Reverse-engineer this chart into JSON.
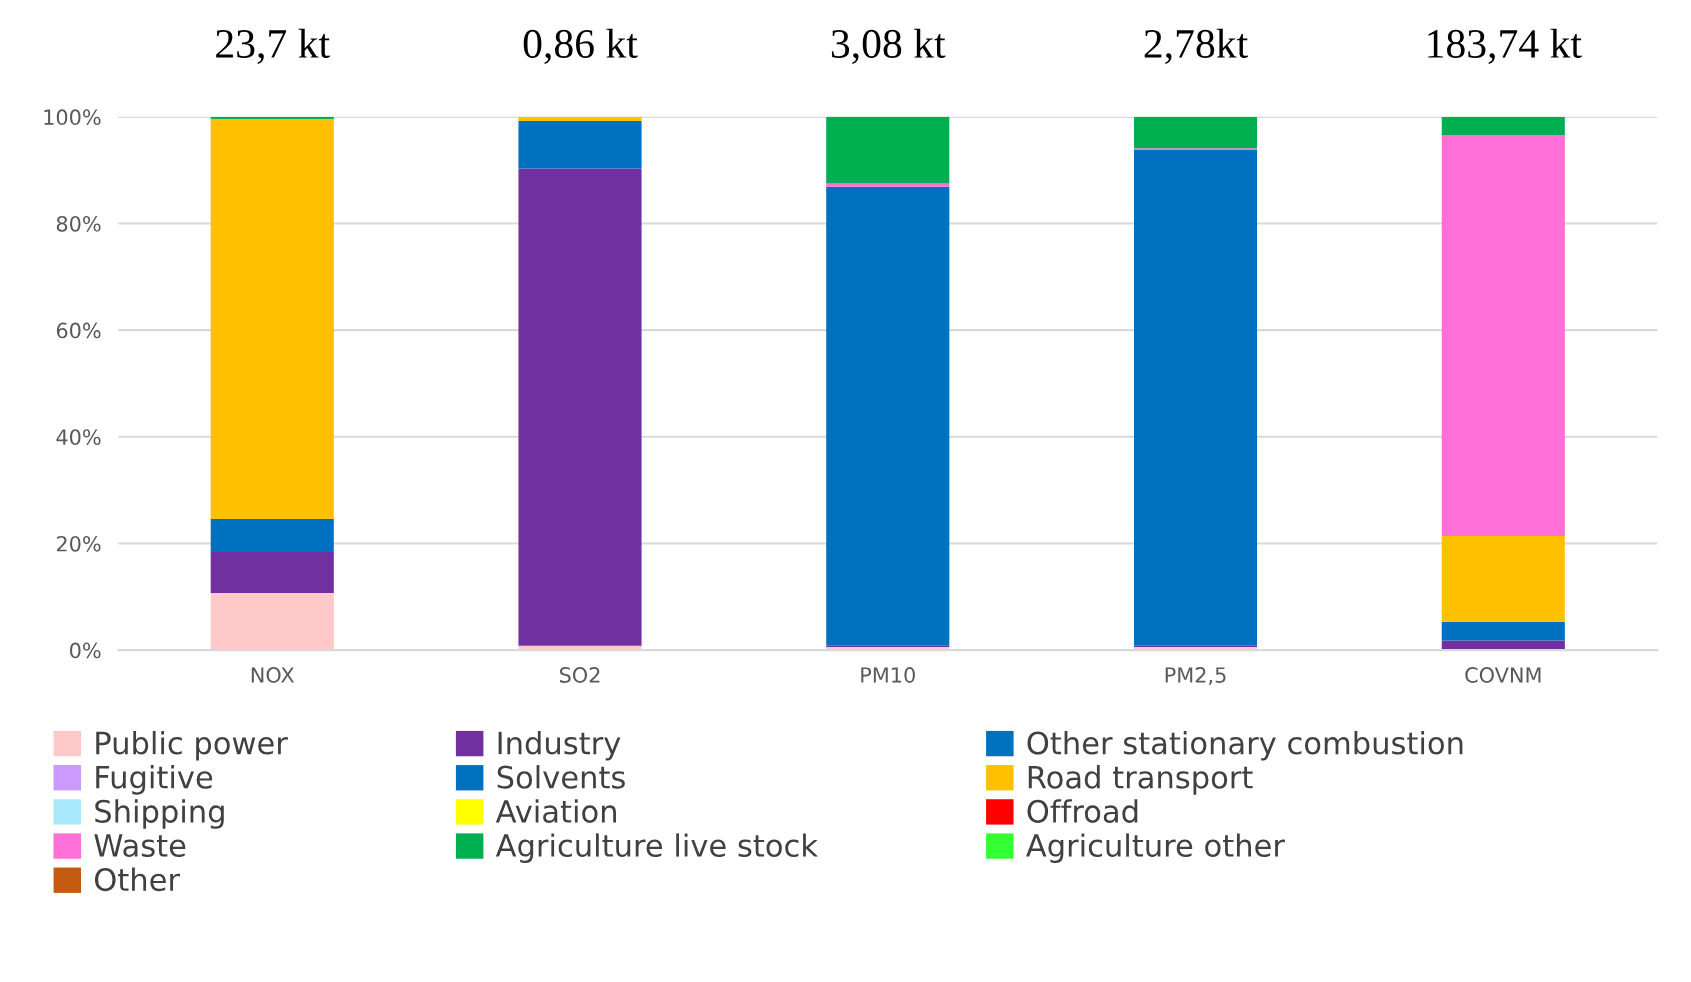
{
  "chart_data": {
    "type": "bar",
    "stacked": true,
    "categories": [
      "NOX",
      "SO2",
      "PM10",
      "PM2,5",
      "COVNM"
    ],
    "annotations": [
      "23,7 kt",
      "0,86 kt",
      "3,08 kt",
      "2,78kt",
      "183,74 kt"
    ],
    "ylim": [
      0,
      100
    ],
    "yticks": [
      {
        "value": 0,
        "label": "0%"
      },
      {
        "value": 20,
        "label": "20%"
      },
      {
        "value": 40,
        "label": "40%"
      },
      {
        "value": 60,
        "label": "60%"
      },
      {
        "value": 80,
        "label": "80%"
      },
      {
        "value": 100,
        "label": "100%"
      }
    ],
    "grid": "y",
    "legend": "bottom",
    "series": [
      {
        "name": "Public power",
        "color": "#ffc9c9",
        "values": [
          10.7,
          0.8,
          0.6,
          0.6,
          0
        ]
      },
      {
        "name": "Industry",
        "color": "#7030a0",
        "values": [
          7.7,
          89.5,
          0.2,
          0.2,
          1.8
        ]
      },
      {
        "name": "Other stationary combustion",
        "color": "#0070c0",
        "values": [
          6.2,
          8.9,
          86.1,
          93.1,
          3.5
        ]
      },
      {
        "name": "Fugitive",
        "color": "#cc99ff",
        "values": [
          0,
          0,
          0,
          0,
          0
        ]
      },
      {
        "name": "Solvents",
        "color": "#0070c0",
        "values": [
          0,
          0,
          0,
          0,
          0
        ]
      },
      {
        "name": "Road transport",
        "color": "#ffc000",
        "values": [
          75.0,
          0.8,
          0,
          0,
          16.1
        ]
      },
      {
        "name": "Shipping",
        "color": "#a9e8fb",
        "values": [
          0,
          0,
          0,
          0,
          0
        ]
      },
      {
        "name": "Aviation",
        "color": "#ffff00",
        "values": [
          0,
          0,
          0,
          0,
          0
        ]
      },
      {
        "name": "Offroad",
        "color": "#ff0000",
        "values": [
          0,
          0,
          0,
          0,
          0
        ]
      },
      {
        "name": "Waste",
        "color": "#ff6fd8",
        "values": [
          0,
          0,
          0.6,
          0.2,
          75.2
        ]
      },
      {
        "name": "Agriculture live stock",
        "color": "#00b050",
        "values": [
          0.4,
          0,
          12.5,
          5.9,
          3.4
        ]
      },
      {
        "name": "Agriculture other",
        "color": "#33ff33",
        "values": [
          0,
          0,
          0,
          0,
          0
        ]
      },
      {
        "name": "Other",
        "color": "#c55a11",
        "values": [
          0,
          0,
          0,
          0,
          0
        ]
      }
    ]
  }
}
